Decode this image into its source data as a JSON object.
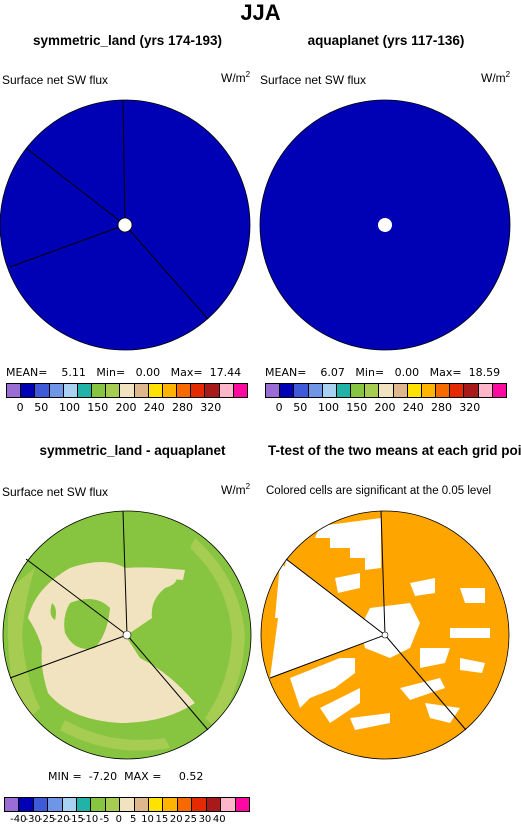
{
  "figure": {
    "title": "JJA"
  },
  "panels": [
    {
      "title": "symmetric_land (yrs 174-193)",
      "variable": "Surface net SW flux",
      "units": "W/m",
      "units_sup": "2",
      "stats": {
        "mean_label": "MEAN=",
        "mean": "5.11",
        "min_label": "Min=",
        "min": "0.00",
        "max_label": "Max=",
        "max": "17.44"
      }
    },
    {
      "title": "aquaplanet (yrs 117-136)",
      "variable": "Surface net SW flux",
      "units": "W/m",
      "units_sup": "2",
      "stats": {
        "mean_label": "MEAN=",
        "mean": "6.07",
        "min_label": "Min=",
        "min": "0.00",
        "max_label": "Max=",
        "max": "18.59"
      }
    },
    {
      "title": "symmetric_land - aquaplanet",
      "variable": "Surface net SW flux",
      "units": "W/m",
      "units_sup": "2",
      "stats": {
        "min_label": "MIN =",
        "min": "-7.20",
        "max_label": "MAX =",
        "max": "0.52"
      }
    },
    {
      "title": "T-test of the two means at each grid point",
      "subtitle": "Colored cells are significant at the 0.05 level"
    }
  ],
  "colorbar_abs": {
    "colors": [
      "#9a6dd6",
      "#0000b4",
      "#3f5ad9",
      "#6f96e6",
      "#a9d2f2",
      "#22b3a8",
      "#87c540",
      "#a6cc52",
      "#f1e3bf",
      "#deb88c",
      "#ffe200",
      "#ffb400",
      "#f76a00",
      "#e42a00",
      "#a81a1a",
      "#ffb6c8",
      "#ff0aa0"
    ],
    "ticks": [
      "0",
      "50",
      "100",
      "150",
      "200",
      "240",
      "280",
      "320"
    ]
  },
  "colorbar_diff": {
    "colors": [
      "#9a6dd6",
      "#0000b4",
      "#3f5ad9",
      "#6f96e6",
      "#a9d2f2",
      "#22b3a8",
      "#87c540",
      "#a6cc52",
      "#f1e3bf",
      "#deb88c",
      "#ffe200",
      "#ffb400",
      "#f76a00",
      "#e42a00",
      "#a81a1a",
      "#ffb6c8",
      "#ff0aa0"
    ],
    "ticks": [
      "-40",
      "-30",
      "-25",
      "-20",
      "-15",
      "-10",
      "-5",
      "0",
      "5",
      "10",
      "15",
      "20",
      "25",
      "30",
      "40"
    ]
  },
  "map_colors": {
    "absolute_fill": "#0000b4",
    "diff_background": "#87c540",
    "diff_positive": "#f1e3bf",
    "significant": "#ffa500"
  }
}
